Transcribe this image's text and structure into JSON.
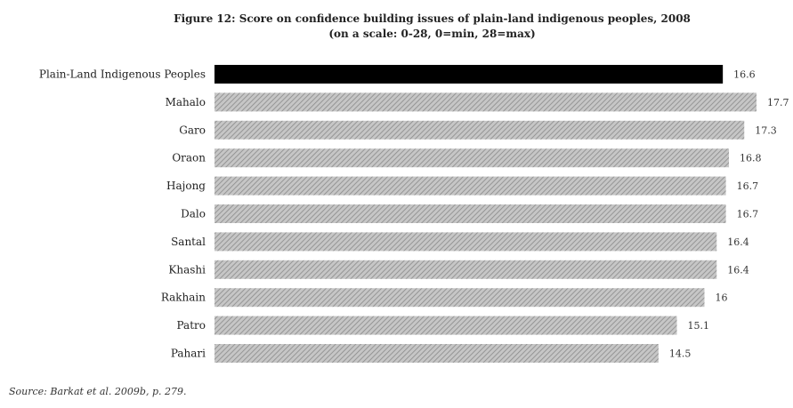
{
  "chart_data": {
    "type": "bar",
    "orientation": "horizontal",
    "title": "Figure 12: Score on confidence building issues of plain-land indigenous peoples, 2008",
    "subtitle": "(on a scale: 0-28, 0=min, 28=max)",
    "categories": [
      "Plain-Land Indigenous Peoples",
      "Mahalo",
      "Garo",
      "Oraon",
      "Hajong",
      "Dalo",
      "Santal",
      "Khashi",
      "Rakhain",
      "Patro",
      "Pahari"
    ],
    "values": [
      16.6,
      17.7,
      17.3,
      16.8,
      16.7,
      16.7,
      16.4,
      16.4,
      16,
      15.1,
      14.5
    ],
    "value_labels": [
      "16.6",
      "17.7",
      "17.3",
      "16.8",
      "16.7",
      "16.7",
      "16.4",
      "16.4",
      "16",
      "15.1",
      "14.5"
    ],
    "xlim": [
      0,
      17.7
    ],
    "grid": false,
    "axes_visible": false,
    "colors": {
      "highlight": "#000000",
      "bar_fill": "#bdbdbd",
      "bar_hatch": "#8a8a8a"
    },
    "highlight_index": 0
  },
  "source_note": "Source: Barkat et al. 2009b, p. 279."
}
